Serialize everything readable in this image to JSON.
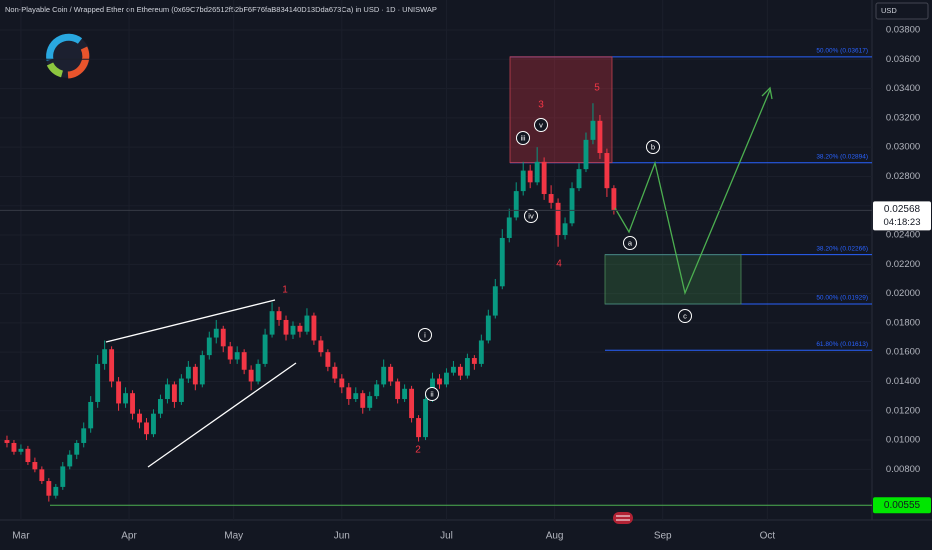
{
  "header": {
    "title": "Non-Playable Coin / Wrapped Ether on Ethereum (0x69C7bd26512f52bF6F76faB834140D13Dda673Ca) in USD · 1D · UNISWAP",
    "currency": "USD"
  },
  "chart_data": {
    "type": "candlestick",
    "up_color": "#089981",
    "down_color": "#f23645",
    "candles": [
      [
        0.01,
        0.0103,
        0.0095,
        0.0098
      ],
      [
        0.0098,
        0.01,
        0.009,
        0.0092
      ],
      [
        0.0092,
        0.0097,
        0.009,
        0.0094
      ],
      [
        0.0094,
        0.0096,
        0.0083,
        0.0085
      ],
      [
        0.0085,
        0.0088,
        0.0078,
        0.008
      ],
      [
        0.008,
        0.0082,
        0.007,
        0.0072
      ],
      [
        0.0072,
        0.0074,
        0.0058,
        0.0062
      ],
      [
        0.0062,
        0.007,
        0.006,
        0.0068
      ],
      [
        0.0068,
        0.0085,
        0.0066,
        0.0082
      ],
      [
        0.0082,
        0.0093,
        0.008,
        0.009
      ],
      [
        0.009,
        0.01,
        0.0087,
        0.0098
      ],
      [
        0.0098,
        0.0112,
        0.0095,
        0.0108
      ],
      [
        0.0108,
        0.013,
        0.0105,
        0.0126
      ],
      [
        0.0126,
        0.0158,
        0.0122,
        0.0152
      ],
      [
        0.0152,
        0.0168,
        0.0148,
        0.0162
      ],
      [
        0.0162,
        0.0164,
        0.0136,
        0.014
      ],
      [
        0.014,
        0.0143,
        0.012,
        0.0125
      ],
      [
        0.0125,
        0.0136,
        0.0122,
        0.0132
      ],
      [
        0.0132,
        0.0134,
        0.0114,
        0.0118
      ],
      [
        0.0118,
        0.0121,
        0.0108,
        0.0112
      ],
      [
        0.0112,
        0.0115,
        0.01,
        0.0104
      ],
      [
        0.0104,
        0.0121,
        0.0102,
        0.0118
      ],
      [
        0.0118,
        0.0131,
        0.0115,
        0.0128
      ],
      [
        0.0128,
        0.0142,
        0.0125,
        0.0138
      ],
      [
        0.0138,
        0.014,
        0.0122,
        0.0126
      ],
      [
        0.0126,
        0.0145,
        0.0124,
        0.0142
      ],
      [
        0.0142,
        0.0154,
        0.0139,
        0.015
      ],
      [
        0.015,
        0.0152,
        0.0134,
        0.0138
      ],
      [
        0.0138,
        0.0161,
        0.0136,
        0.0158
      ],
      [
        0.0158,
        0.0174,
        0.0155,
        0.017
      ],
      [
        0.017,
        0.0182,
        0.0166,
        0.0176
      ],
      [
        0.0176,
        0.0178,
        0.016,
        0.0164
      ],
      [
        0.0164,
        0.0167,
        0.0152,
        0.0155
      ],
      [
        0.0155,
        0.0164,
        0.0152,
        0.016
      ],
      [
        0.016,
        0.0162,
        0.0145,
        0.0148
      ],
      [
        0.0148,
        0.0151,
        0.0134,
        0.014
      ],
      [
        0.014,
        0.0155,
        0.0138,
        0.0152
      ],
      [
        0.0152,
        0.0176,
        0.015,
        0.0172
      ],
      [
        0.0172,
        0.0194,
        0.017,
        0.0188
      ],
      [
        0.0188,
        0.0191,
        0.0178,
        0.0182
      ],
      [
        0.0182,
        0.0185,
        0.0168,
        0.0172
      ],
      [
        0.0172,
        0.0181,
        0.0169,
        0.0178
      ],
      [
        0.0178,
        0.018,
        0.017,
        0.0174
      ],
      [
        0.0174,
        0.019,
        0.0172,
        0.0185
      ],
      [
        0.0185,
        0.0187,
        0.0165,
        0.0168
      ],
      [
        0.0168,
        0.0171,
        0.0157,
        0.016
      ],
      [
        0.016,
        0.0162,
        0.0147,
        0.015
      ],
      [
        0.015,
        0.0153,
        0.0139,
        0.0142
      ],
      [
        0.0142,
        0.0145,
        0.0132,
        0.0136
      ],
      [
        0.0136,
        0.0139,
        0.0124,
        0.0128
      ],
      [
        0.0128,
        0.0136,
        0.0126,
        0.0132
      ],
      [
        0.0132,
        0.0134,
        0.0118,
        0.0122
      ],
      [
        0.0122,
        0.0133,
        0.012,
        0.013
      ],
      [
        0.013,
        0.0141,
        0.0128,
        0.0138
      ],
      [
        0.0138,
        0.0155,
        0.0136,
        0.015
      ],
      [
        0.015,
        0.0152,
        0.0137,
        0.014
      ],
      [
        0.014,
        0.0142,
        0.0125,
        0.0128
      ],
      [
        0.0128,
        0.0138,
        0.0126,
        0.0135
      ],
      [
        0.0135,
        0.0137,
        0.0112,
        0.0115
      ],
      [
        0.0115,
        0.0117,
        0.0099,
        0.0102
      ],
      [
        0.0102,
        0.0131,
        0.01,
        0.0128
      ],
      [
        0.0128,
        0.0146,
        0.0126,
        0.0142
      ],
      [
        0.0142,
        0.0145,
        0.0135,
        0.0138
      ],
      [
        0.0138,
        0.0149,
        0.0136,
        0.0146
      ],
      [
        0.0146,
        0.0154,
        0.0144,
        0.015
      ],
      [
        0.015,
        0.0152,
        0.0141,
        0.0144
      ],
      [
        0.0144,
        0.0159,
        0.0142,
        0.0156
      ],
      [
        0.0156,
        0.0158,
        0.0148,
        0.0152
      ],
      [
        0.0152,
        0.0172,
        0.015,
        0.0168
      ],
      [
        0.0168,
        0.0189,
        0.0166,
        0.0185
      ],
      [
        0.0185,
        0.021,
        0.0183,
        0.0205
      ],
      [
        0.0205,
        0.0244,
        0.0203,
        0.0238
      ],
      [
        0.0238,
        0.0258,
        0.0235,
        0.0252
      ],
      [
        0.0252,
        0.0276,
        0.025,
        0.027
      ],
      [
        0.027,
        0.029,
        0.0267,
        0.0284
      ],
      [
        0.0284,
        0.0288,
        0.0272,
        0.0276
      ],
      [
        0.0276,
        0.03,
        0.0274,
        0.029
      ],
      [
        0.029,
        0.0293,
        0.0264,
        0.0268
      ],
      [
        0.0268,
        0.0274,
        0.0258,
        0.0262
      ],
      [
        0.0262,
        0.0265,
        0.0232,
        0.024
      ],
      [
        0.024,
        0.0252,
        0.0237,
        0.0248
      ],
      [
        0.0248,
        0.0276,
        0.0246,
        0.0272
      ],
      [
        0.0272,
        0.0289,
        0.027,
        0.0285
      ],
      [
        0.0285,
        0.031,
        0.0283,
        0.0305
      ],
      [
        0.0305,
        0.033,
        0.0302,
        0.0318
      ],
      [
        0.0318,
        0.0322,
        0.0292,
        0.0296
      ],
      [
        0.0296,
        0.0299,
        0.0266,
        0.0272
      ],
      [
        0.0272,
        0.0274,
        0.0254,
        0.0257
      ]
    ],
    "xlim": [
      -1,
      124
    ],
    "xticks": [
      {
        "value": 2,
        "label": "Mar"
      },
      {
        "value": 17.5,
        "label": "Apr"
      },
      {
        "value": 32.5,
        "label": "May"
      },
      {
        "value": 48,
        "label": "Jun"
      },
      {
        "value": 63,
        "label": "Jul"
      },
      {
        "value": 78.5,
        "label": "Aug"
      },
      {
        "value": 94,
        "label": "Sep"
      },
      {
        "value": 109,
        "label": "Oct"
      }
    ],
    "ylim": [
      0.00454,
      0.04005
    ],
    "yticks": [
      {
        "value": 0.008,
        "label": "0.00800"
      },
      {
        "value": 0.01,
        "label": "0.01000"
      },
      {
        "value": 0.012,
        "label": "0.01200"
      },
      {
        "value": 0.014,
        "label": "0.01400"
      },
      {
        "value": 0.016,
        "label": "0.01600"
      },
      {
        "value": 0.018,
        "label": "0.01800"
      },
      {
        "value": 0.02,
        "label": "0.02000"
      },
      {
        "value": 0.022,
        "label": "0.02200"
      },
      {
        "value": 0.024,
        "label": "0.02400"
      },
      {
        "value": 0.026,
        "label": "0.02600"
      },
      {
        "value": 0.028,
        "label": "0.02800"
      },
      {
        "value": 0.03,
        "label": "0.03000"
      },
      {
        "value": 0.032,
        "label": "0.03200"
      },
      {
        "value": 0.034,
        "label": "0.03400"
      },
      {
        "value": 0.036,
        "label": "0.03600"
      },
      {
        "value": 0.038,
        "label": "0.03800"
      }
    ],
    "last_price": 0.02568,
    "countdown": "04:18:23",
    "low_price": 0.00555,
    "fib_levels": [
      {
        "value": 0.03617,
        "label": "50.00% (0.03617)"
      },
      {
        "value": 0.02894,
        "label": "38.20% (0.02894)"
      },
      {
        "value": 0.02266,
        "label": "38.20% (0.02266)"
      },
      {
        "value": 0.01929,
        "label": "50.00% (0.01929)"
      },
      {
        "value": 0.01613,
        "label": "61.80% (0.01613)"
      }
    ],
    "waves": [
      "1",
      "2",
      "3",
      "4",
      "5"
    ],
    "subwaves": [
      "i",
      "ii",
      "iii",
      "iv",
      "v",
      "a",
      "b",
      "c"
    ]
  }
}
